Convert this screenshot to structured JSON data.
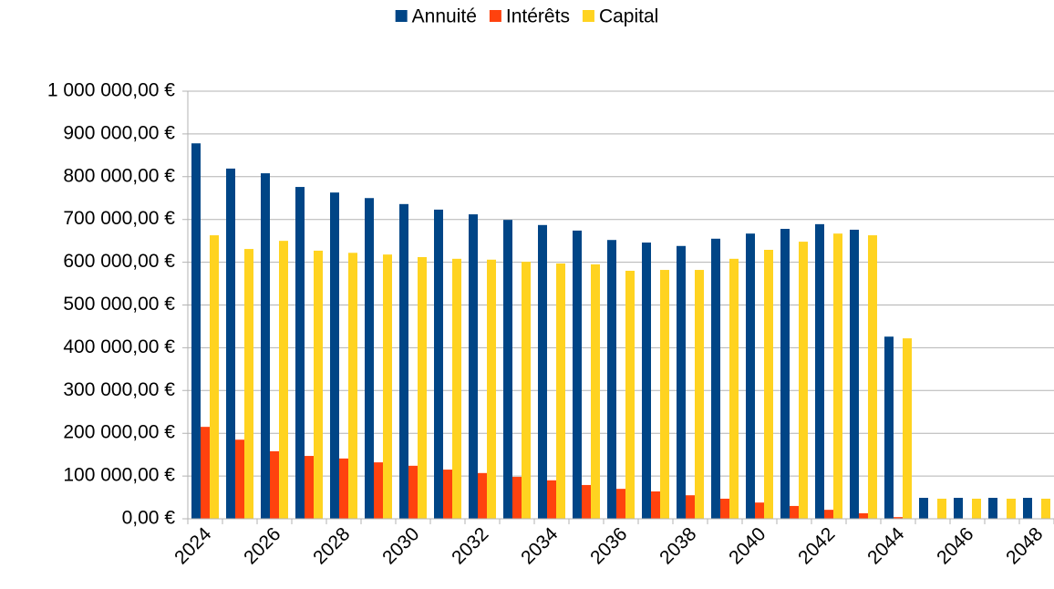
{
  "chart_data": {
    "type": "bar",
    "categories": [
      "2024",
      null,
      "2026",
      null,
      "2028",
      null,
      "2030",
      null,
      "2032",
      null,
      "2034",
      null,
      "2036",
      null,
      "2038",
      null,
      "2040",
      null,
      "2042",
      null,
      "2044",
      null,
      "2046",
      null,
      "2048"
    ],
    "series": [
      {
        "name": "Annuité",
        "color": "#004586",
        "values": [
          878000,
          819000,
          808000,
          776000,
          763000,
          750000,
          736000,
          723000,
          712000,
          699000,
          687000,
          674000,
          652000,
          646000,
          638000,
          655000,
          667000,
          678000,
          689000,
          676000,
          426000,
          49000,
          49000,
          49000,
          49000
        ]
      },
      {
        "name": "Intérêts",
        "color": "#ff420e",
        "values": [
          215000,
          185000,
          158000,
          147000,
          141000,
          132000,
          124000,
          115000,
          107000,
          98000,
          90000,
          79000,
          70000,
          64000,
          55000,
          47000,
          38000,
          30000,
          21000,
          13000,
          4000,
          0,
          0,
          1000,
          0
        ]
      },
      {
        "name": "Capital",
        "color": "#ffd320",
        "values": [
          663000,
          631000,
          650000,
          627000,
          622000,
          618000,
          612000,
          608000,
          606000,
          601000,
          597000,
          595000,
          580000,
          582000,
          582000,
          608000,
          629000,
          648000,
          667000,
          663000,
          422000,
          47000,
          47000,
          47000,
          47000
        ]
      }
    ],
    "ylim": [
      0,
      1000000
    ],
    "yticks": [
      {
        "value": 0,
        "label": "0,00 €"
      },
      {
        "value": 100000,
        "label": "100 000,00 €"
      },
      {
        "value": 200000,
        "label": "200 000,00 €"
      },
      {
        "value": 300000,
        "label": "300 000,00 €"
      },
      {
        "value": 400000,
        "label": "400 000,00 €"
      },
      {
        "value": 500000,
        "label": "500 000,00 €"
      },
      {
        "value": 600000,
        "label": "600 000,00 €"
      },
      {
        "value": 700000,
        "label": "700 000,00 €"
      },
      {
        "value": 800000,
        "label": "800 000,00 €"
      },
      {
        "value": 900000,
        "label": "900 000,00 €"
      },
      {
        "value": 1000000,
        "label": "1 000 000,00 €"
      }
    ],
    "grid": true,
    "legend": "top"
  }
}
